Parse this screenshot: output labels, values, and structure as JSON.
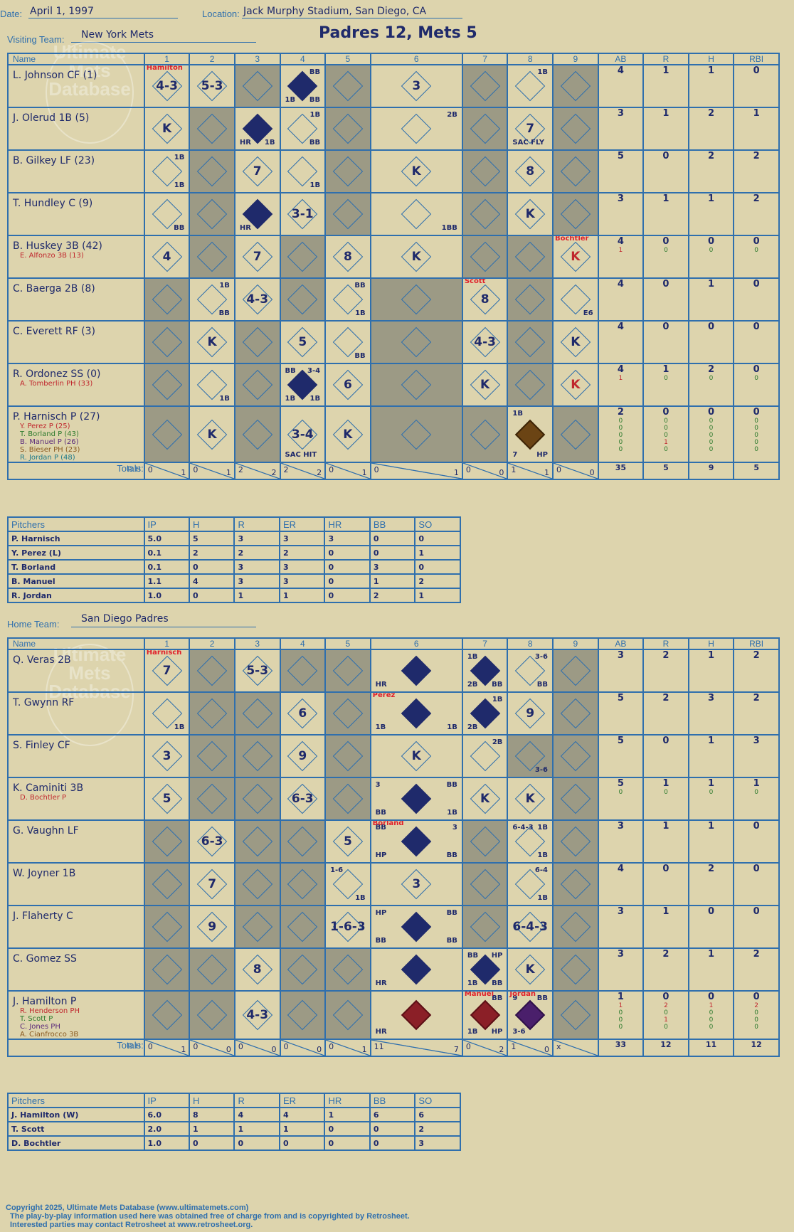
{
  "header": {
    "date_label": "Date:",
    "date": "April 1, 1997",
    "location_label": "Location:",
    "location": "Jack Murphy Stadium, San Diego, CA",
    "visiting_label": "Visiting Team:",
    "visiting_team": "New York Mets",
    "home_label": "Home Team:",
    "home_team": "San Diego Padres",
    "final": "Padres 12, Mets 5"
  },
  "columns": [
    "Name",
    "1",
    "2",
    "3",
    "4",
    "5",
    "6",
    "7",
    "8",
    "9",
    "AB",
    "R",
    "H",
    "RBI"
  ],
  "totals_label": "Totals:",
  "pitcher_columns": [
    "Pitchers",
    "IP",
    "H",
    "R",
    "ER",
    "HR",
    "BB",
    "SO"
  ],
  "watermark": "Ultimate Mets Database",
  "footer": {
    "line1": "Copyright 2025, Ultimate Mets Database (www.ultimatemets.com)",
    "line2": "The play-by-play information used here was obtained free of charge from and is copyrighted by Retrosheet.",
    "line3": "Interested parties may contact Retrosheet at www.retrosheet.org."
  },
  "visitors": {
    "batters": [
      {
        "name": "L. Johnson CF (1)",
        "subs": [],
        "stats": [
          "4",
          "1",
          "1",
          "0"
        ],
        "substats": []
      },
      {
        "name": "J. Olerud 1B (5)",
        "subs": [],
        "stats": [
          "3",
          "1",
          "2",
          "1"
        ],
        "substats": []
      },
      {
        "name": "B. Gilkey LF (23)",
        "subs": [],
        "stats": [
          "5",
          "0",
          "2",
          "2"
        ],
        "substats": []
      },
      {
        "name": "T. Hundley C (9)",
        "subs": [],
        "stats": [
          "3",
          "1",
          "1",
          "2"
        ],
        "substats": []
      },
      {
        "name": "B. Huskey 3B (42)",
        "subs": [
          "E. Alfonzo 3B (13)"
        ],
        "stats": [
          "4",
          "0",
          "0",
          "0"
        ],
        "substats": [
          [
            "1",
            "0",
            "0",
            "0"
          ]
        ]
      },
      {
        "name": "C. Baerga 2B (8)",
        "subs": [],
        "stats": [
          "4",
          "0",
          "1",
          "0"
        ],
        "substats": []
      },
      {
        "name": "C. Everett RF (3)",
        "subs": [],
        "stats": [
          "4",
          "0",
          "0",
          "0"
        ],
        "substats": []
      },
      {
        "name": "R. Ordonez SS (0)",
        "subs": [
          "A. Tomberlin PH (33)"
        ],
        "stats": [
          "4",
          "1",
          "2",
          "0"
        ],
        "substats": [
          [
            "1",
            "0",
            "0",
            "0"
          ]
        ]
      },
      {
        "name": "P. Harnisch P (27)",
        "subs": [
          "Y. Perez P (25)",
          "T. Borland P (43)",
          "B. Manuel P (26)",
          "S. Bieser PH (23)",
          "R. Jordan P (48)"
        ],
        "stats": [
          "2",
          "0",
          "0",
          "0"
        ],
        "substats": [
          [
            "0",
            "0",
            "0",
            "0"
          ],
          [
            "0",
            "0",
            "0",
            "0"
          ],
          [
            "0",
            "0",
            "0",
            "0"
          ],
          [
            "0",
            "1",
            "0",
            "0"
          ],
          [
            "0",
            "0",
            "0",
            "0"
          ]
        ]
      }
    ],
    "grid": [
      [
        "4-3|tl:|pitch:Hamilton",
        "5-3",
        "",
        "d:fill|tr:BB|bl:1B|br:BB",
        "",
        "3",
        "",
        "tr:1B",
        ""
      ],
      [
        "K",
        "",
        "d:fill|bl:HR|br:1B",
        "tr:1B|br:BB",
        "",
        "tr:2B",
        "",
        "7|bl:SAC FLY",
        ""
      ],
      [
        "tr:1B|br:1B",
        "",
        "7",
        "br:1B",
        "",
        "K",
        "",
        "8",
        ""
      ],
      [
        "br:BB",
        "",
        "d:fill|bl:HR",
        "3-1",
        "",
        "br:1BB",
        "",
        "K",
        ""
      ],
      [
        "4",
        "",
        "7",
        "",
        "8",
        "K",
        "",
        "",
        "K|red|pitch:Bochtler"
      ],
      [
        "",
        "tr:1B|br:BB",
        "4-3",
        "",
        "tr:BB|br:1B",
        "",
        "8|pitch:Scott",
        "",
        "br:E6"
      ],
      [
        "",
        "K",
        "",
        "5",
        "br:BB",
        "",
        "4-3",
        "",
        "K"
      ],
      [
        "",
        "br:1B",
        "",
        "d:fill|tl:BB|tr:3-4|bl:1B|br:1B",
        "6",
        "",
        "K",
        "",
        "K|red"
      ],
      [
        "",
        "K",
        "",
        "3-4|bl:SAC HIT",
        "K",
        "",
        "",
        "d:fillb|tl:1B|bl:7|br:HP",
        ""
      ]
    ],
    "shade": [
      [
        0,
        0,
        1,
        0,
        1,
        0,
        1,
        0,
        1
      ],
      [
        0,
        1,
        0,
        0,
        1,
        0,
        1,
        0,
        1
      ],
      [
        0,
        1,
        0,
        0,
        1,
        0,
        1,
        0,
        1
      ],
      [
        0,
        1,
        0,
        0,
        1,
        0,
        1,
        0,
        1
      ],
      [
        0,
        1,
        0,
        1,
        0,
        0,
        1,
        1,
        0
      ],
      [
        1,
        0,
        0,
        1,
        0,
        1,
        0,
        1,
        0
      ],
      [
        1,
        0,
        1,
        0,
        0,
        1,
        0,
        1,
        0
      ],
      [
        1,
        0,
        1,
        0,
        0,
        1,
        0,
        1,
        0
      ],
      [
        1,
        0,
        1,
        0,
        0,
        1,
        1,
        0,
        1
      ]
    ],
    "totals": [
      [
        "0",
        "1"
      ],
      [
        "0",
        "1"
      ],
      [
        "2",
        "2"
      ],
      [
        "2",
        "2"
      ],
      [
        "0",
        "1"
      ],
      [
        "0",
        "1"
      ],
      [
        "0",
        "0"
      ],
      [
        "1",
        "1"
      ],
      [
        "0",
        "0"
      ]
    ],
    "total_stats": [
      "35",
      "5",
      "9",
      "5"
    ],
    "pitchers": [
      [
        "P. Harnisch",
        "5.0",
        "5",
        "3",
        "3",
        "3",
        "0",
        "0"
      ],
      [
        "Y. Perez (L)",
        "0.1",
        "2",
        "2",
        "2",
        "0",
        "0",
        "1"
      ],
      [
        "T. Borland",
        "0.1",
        "0",
        "3",
        "3",
        "0",
        "3",
        "0"
      ],
      [
        "B. Manuel",
        "1.1",
        "4",
        "3",
        "3",
        "0",
        "1",
        "2"
      ],
      [
        "R. Jordan",
        "1.0",
        "0",
        "1",
        "1",
        "0",
        "2",
        "1"
      ]
    ]
  },
  "home": {
    "batters": [
      {
        "name": "Q. Veras 2B",
        "subs": [],
        "stats": [
          "3",
          "2",
          "1",
          "2"
        ],
        "substats": []
      },
      {
        "name": "T. Gwynn RF",
        "subs": [],
        "stats": [
          "5",
          "2",
          "3",
          "2"
        ],
        "substats": []
      },
      {
        "name": "S. Finley CF",
        "subs": [],
        "stats": [
          "5",
          "0",
          "1",
          "3"
        ],
        "substats": []
      },
      {
        "name": "K. Caminiti 3B",
        "subs": [
          "D. Bochtler P"
        ],
        "stats": [
          "5",
          "1",
          "1",
          "1"
        ],
        "substats": [
          [
            "0",
            "0",
            "0",
            "0"
          ]
        ]
      },
      {
        "name": "G. Vaughn LF",
        "subs": [],
        "stats": [
          "3",
          "1",
          "1",
          "0"
        ],
        "substats": []
      },
      {
        "name": "W. Joyner 1B",
        "subs": [],
        "stats": [
          "4",
          "0",
          "2",
          "0"
        ],
        "substats": []
      },
      {
        "name": "J. Flaherty C",
        "subs": [],
        "stats": [
          "3",
          "1",
          "0",
          "0"
        ],
        "substats": []
      },
      {
        "name": "C. Gomez SS",
        "subs": [],
        "stats": [
          "3",
          "2",
          "1",
          "2"
        ],
        "substats": []
      },
      {
        "name": "J. Hamilton P",
        "subs": [
          "R. Henderson PH",
          "T. Scott P",
          "C. Jones PH",
          "A. Cianfrocco 3B"
        ],
        "stats": [
          "1",
          "0",
          "0",
          "0"
        ],
        "substats": [
          [
            "1",
            "2",
            "1",
            "2"
          ],
          [
            "0",
            "0",
            "0",
            "0"
          ],
          [
            "0",
            "1",
            "0",
            "0"
          ],
          [
            "0",
            "0",
            "0",
            "0"
          ]
        ]
      }
    ],
    "grid": [
      [
        "7|pitch:Harnisch",
        "",
        "5-3",
        "",
        "",
        "d:fill|bl:HR",
        "d:fill|tl:1B|bl:2B|br:BB",
        "tr:3-6|br:BB",
        ""
      ],
      [
        "br:1B",
        "",
        "",
        "6",
        "",
        "d:fill|bl:1B|br:1B|pitch:Perez",
        "d:fill|tr:1B|bl:2B",
        "9",
        ""
      ],
      [
        "3",
        "",
        "",
        "9",
        "",
        "K",
        "tr:2B",
        "br:3-6",
        ""
      ],
      [
        "5",
        "",
        "",
        "6-3",
        "",
        "d:fill|tl:3|tr:BB|bl:BB|br:1B",
        "K",
        "K",
        ""
      ],
      [
        "",
        "6-3",
        "",
        "",
        "5",
        "d:fill|tl:BB|tr:3|bl:HP|br:BB|pitch:Borland",
        "",
        "tl:6-4-3|tr:1B|br:1B",
        ""
      ],
      [
        "",
        "7",
        "",
        "",
        "tl:1-6|br:1B",
        "3",
        "",
        "tr:6-4|br:1B",
        ""
      ],
      [
        "",
        "9",
        "",
        "",
        "1-6-3",
        "d:fill|tl:HP|tr:BB|bl:BB|br:BB",
        "",
        "6-4-3",
        ""
      ],
      [
        "",
        "",
        "8",
        "",
        "",
        "d:fill|bl:HR",
        "d:fill|tl:BB|tr:HP|bl:1B|br:BB",
        "K",
        ""
      ],
      [
        "",
        "",
        "4-3",
        "",
        "",
        "d:fillr|bl:HR",
        "d:fillr|tr:BB|bl:1B|br:HP|pitch:Manuel",
        "d:fillp|tl:9|tr:BB|bl:3-6|pitch:Jordan",
        ""
      ]
    ],
    "shade": [
      [
        0,
        1,
        0,
        1,
        1,
        0,
        0,
        0,
        1
      ],
      [
        0,
        1,
        1,
        0,
        1,
        0,
        0,
        0,
        1
      ],
      [
        0,
        1,
        1,
        0,
        1,
        0,
        0,
        1,
        1
      ],
      [
        0,
        1,
        1,
        0,
        1,
        0,
        0,
        0,
        1
      ],
      [
        1,
        0,
        1,
        1,
        0,
        0,
        1,
        0,
        1
      ],
      [
        1,
        0,
        1,
        1,
        0,
        0,
        1,
        0,
        1
      ],
      [
        1,
        0,
        1,
        1,
        0,
        0,
        1,
        0,
        1
      ],
      [
        1,
        1,
        0,
        1,
        1,
        0,
        0,
        0,
        1
      ],
      [
        1,
        1,
        0,
        1,
        1,
        0,
        0,
        0,
        1
      ]
    ],
    "totals": [
      [
        "0",
        "1"
      ],
      [
        "0",
        "0"
      ],
      [
        "0",
        "0"
      ],
      [
        "0",
        "0"
      ],
      [
        "0",
        "1"
      ],
      [
        "11",
        "7"
      ],
      [
        "0",
        "2"
      ],
      [
        "1",
        "0"
      ],
      [
        "x",
        ""
      ]
    ],
    "total_stats": [
      "33",
      "12",
      "11",
      "12"
    ],
    "pitchers": [
      [
        "J. Hamilton (W)",
        "6.0",
        "8",
        "4",
        "4",
        "1",
        "6",
        "6"
      ],
      [
        "T. Scott",
        "2.0",
        "1",
        "1",
        "1",
        "0",
        "0",
        "2"
      ],
      [
        "D. Bochtler",
        "1.0",
        "0",
        "0",
        "0",
        "0",
        "0",
        "3"
      ]
    ]
  }
}
